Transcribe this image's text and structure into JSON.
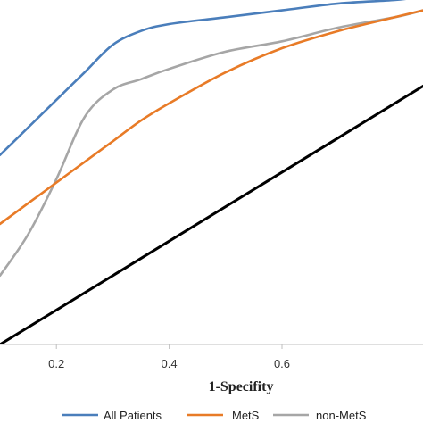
{
  "chart_data": {
    "type": "line",
    "title": "",
    "xlabel": "1-Specifity",
    "ylabel": "",
    "xlim": [
      0.1,
      0.85
    ],
    "ylim": [
      0.0,
      1.0
    ],
    "x_ticks": [
      0.2,
      0.4,
      0.6
    ],
    "x_tick_labels": [
      "0.2",
      "0.4",
      "0.6"
    ],
    "grid": false,
    "legend_position": "bottom",
    "series": [
      {
        "name": "All Patients",
        "color": "#4a7ebb",
        "x": [
          0.1,
          0.15,
          0.2,
          0.25,
          0.3,
          0.35,
          0.4,
          0.5,
          0.6,
          0.7,
          0.8,
          0.85
        ],
        "y": [
          0.55,
          0.63,
          0.71,
          0.79,
          0.87,
          0.91,
          0.93,
          0.95,
          0.97,
          0.99,
          1.0,
          1.01
        ]
      },
      {
        "name": "MetS",
        "color": "#e87b27",
        "x": [
          0.1,
          0.15,
          0.2,
          0.25,
          0.3,
          0.35,
          0.4,
          0.5,
          0.6,
          0.7,
          0.8,
          0.85
        ],
        "y": [
          0.35,
          0.41,
          0.47,
          0.53,
          0.59,
          0.65,
          0.7,
          0.79,
          0.86,
          0.91,
          0.95,
          0.97
        ]
      },
      {
        "name": "non-MetS",
        "color": "#a6a6a6",
        "x": [
          0.1,
          0.15,
          0.2,
          0.25,
          0.3,
          0.35,
          0.4,
          0.5,
          0.6,
          0.7,
          0.8,
          0.85
        ],
        "y": [
          0.2,
          0.32,
          0.48,
          0.66,
          0.74,
          0.77,
          0.8,
          0.85,
          0.88,
          0.92,
          0.95,
          0.97
        ]
      },
      {
        "name": "",
        "color": "#000000",
        "x": [
          0.1,
          0.85
        ],
        "y": [
          0.0,
          0.75
        ]
      }
    ]
  }
}
